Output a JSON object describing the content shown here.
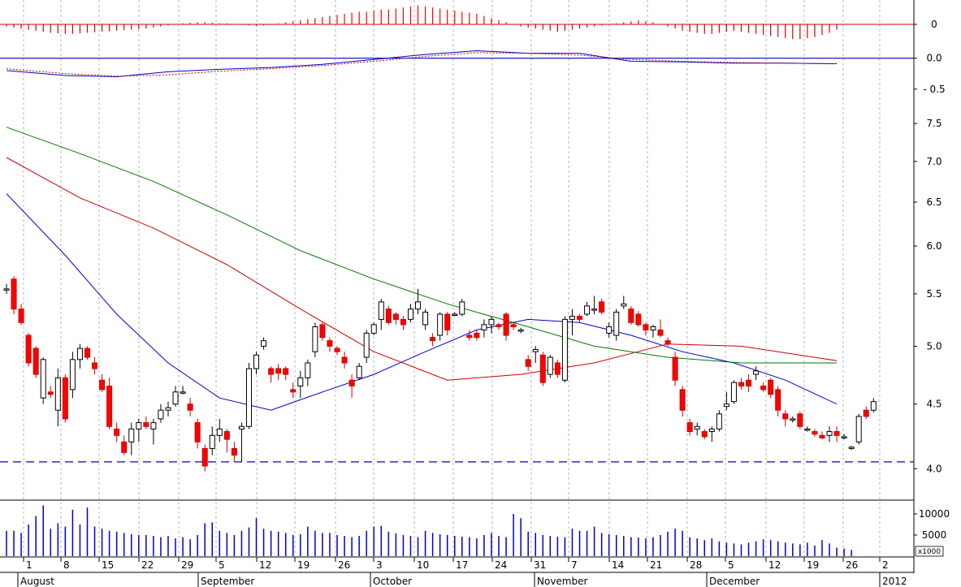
{
  "chart_data": [
    {
      "type": "bar",
      "panel": "oscillator-histogram",
      "y_tick_labels": [
        "0"
      ],
      "positive_color": "#ff0000",
      "negative_color": "#cc0000",
      "values": [
        -0.02,
        -0.03,
        -0.04,
        -0.05,
        -0.06,
        -0.07,
        -0.08,
        -0.085,
        -0.09,
        -0.09,
        -0.085,
        -0.08,
        -0.075,
        -0.07,
        -0.065,
        -0.06,
        -0.055,
        -0.05,
        -0.045,
        -0.04,
        -0.03,
        -0.02,
        -0.01,
        0.005,
        0.01,
        0.015,
        0.02,
        0.02,
        0.015,
        0.01,
        0.01,
        0.005,
        -0.005,
        -0.01,
        -0.015,
        -0.01,
        0.0,
        0.01,
        0.02,
        0.03,
        0.04,
        0.05,
        0.06,
        0.07,
        0.08,
        0.09,
        0.1,
        0.11,
        0.12,
        0.12,
        0.13,
        0.14,
        0.14,
        0.15,
        0.16,
        0.17,
        0.18,
        0.17,
        0.16,
        0.15,
        0.14,
        0.13,
        0.12,
        0.11,
        0.1,
        0.08,
        0.06,
        0.04,
        0.02,
        0.0,
        -0.02,
        -0.03,
        -0.04,
        -0.05,
        -0.06,
        -0.07,
        -0.06,
        -0.05,
        -0.04,
        -0.03,
        -0.02,
        -0.01,
        0.0,
        0.01,
        0.02,
        0.03,
        0.04,
        0.03,
        0.02,
        0.0,
        -0.02,
        -0.04,
        -0.06,
        -0.07,
        -0.08,
        -0.09,
        -0.09,
        -0.08,
        -0.07,
        -0.06,
        -0.07,
        -0.08,
        -0.09,
        -0.1,
        -0.11,
        -0.12,
        -0.13,
        -0.14,
        -0.14,
        -0.13,
        -0.12,
        -0.1,
        -0.08,
        -0.05
      ]
    },
    {
      "type": "line",
      "panel": "oscillator-lines",
      "y_ticks": [
        0.0,
        -0.5
      ],
      "y_tick_labels": [
        "0.0",
        "- 0.5"
      ],
      "ylim": [
        -0.7,
        0.35
      ],
      "zero_line_color": "#0000c8",
      "series": [
        {
          "color": "#0000c8",
          "style": "solid",
          "x": [
            0,
            8,
            15,
            22,
            29,
            36,
            43,
            50,
            57,
            64,
            71,
            78,
            85,
            92,
            99,
            106,
            113
          ],
          "values": [
            -0.2,
            -0.28,
            -0.3,
            -0.22,
            -0.18,
            -0.15,
            -0.1,
            -0.02,
            0.06,
            0.12,
            0.08,
            0.08,
            -0.05,
            -0.06,
            -0.08,
            -0.08,
            -0.09
          ]
        },
        {
          "color": "#cc0000",
          "style": "dotted",
          "x": [
            0,
            8,
            15,
            22,
            29,
            36,
            43,
            50,
            57,
            64,
            71,
            78,
            85,
            92,
            99,
            106,
            113
          ],
          "values": [
            -0.17,
            -0.25,
            -0.29,
            -0.27,
            -0.21,
            -0.17,
            -0.12,
            -0.05,
            0.03,
            0.09,
            0.08,
            0.05,
            -0.02,
            -0.05,
            -0.07,
            -0.08,
            -0.09
          ]
        }
      ]
    },
    {
      "type": "candlestick",
      "panel": "price",
      "y_ticks": [
        4.0,
        4.5,
        5.0,
        5.5,
        6.0,
        6.5,
        7.0,
        7.5
      ],
      "y_tick_labels": [
        "4.0",
        "4.5",
        "5.0",
        "5.5",
        "6.0",
        "6.5",
        "7.0",
        "7.5"
      ],
      "ylim": [
        3.8,
        7.75
      ],
      "log_scale": true,
      "support_level": 4.05,
      "support_color": "#0000c8",
      "up_color": "#ffffff",
      "down_color": "#ff0000",
      "ohlc": [
        [
          5.55,
          5.6,
          5.5,
          5.55
        ],
        [
          5.65,
          5.68,
          5.3,
          5.35
        ],
        [
          5.35,
          5.4,
          5.2,
          5.22
        ],
        [
          5.1,
          5.12,
          4.82,
          4.85
        ],
        [
          4.98,
          5.0,
          4.72,
          4.75
        ],
        [
          4.55,
          4.9,
          4.5,
          4.88
        ],
        [
          4.6,
          4.65,
          4.55,
          4.58
        ],
        [
          4.45,
          4.8,
          4.32,
          4.72
        ],
        [
          4.72,
          4.75,
          4.35,
          4.38
        ],
        [
          4.62,
          4.95,
          4.55,
          4.88
        ],
        [
          4.88,
          5.02,
          4.8,
          4.98
        ],
        [
          4.98,
          5.0,
          4.88,
          4.9
        ],
        [
          4.85,
          4.9,
          4.75,
          4.8
        ],
        [
          4.7,
          4.75,
          4.6,
          4.62
        ],
        [
          4.65,
          4.72,
          4.3,
          4.32
        ],
        [
          4.3,
          4.35,
          4.2,
          4.25
        ],
        [
          4.2,
          4.25,
          4.1,
          4.12
        ],
        [
          4.2,
          4.35,
          4.1,
          4.3
        ],
        [
          4.3,
          4.38,
          4.2,
          4.35
        ],
        [
          4.35,
          4.4,
          4.3,
          4.32
        ],
        [
          4.3,
          4.38,
          4.18,
          4.35
        ],
        [
          4.38,
          4.5,
          4.35,
          4.45
        ],
        [
          4.45,
          4.52,
          4.4,
          4.47
        ],
        [
          4.5,
          4.65,
          4.48,
          4.6
        ],
        [
          4.6,
          4.65,
          4.58,
          4.6
        ],
        [
          4.5,
          4.55,
          4.4,
          4.45
        ],
        [
          4.35,
          4.38,
          4.15,
          4.2
        ],
        [
          4.15,
          4.18,
          3.98,
          4.02
        ],
        [
          4.15,
          4.32,
          4.1,
          4.25
        ],
        [
          4.25,
          4.38,
          4.2,
          4.3
        ],
        [
          4.28,
          4.3,
          4.12,
          4.22
        ],
        [
          4.15,
          4.2,
          4.05,
          4.1
        ],
        [
          4.3,
          4.35,
          4.05,
          4.32
        ],
        [
          4.32,
          4.85,
          4.3,
          4.8
        ],
        [
          4.8,
          4.95,
          4.75,
          4.92
        ],
        [
          5.0,
          5.08,
          4.97,
          5.05
        ],
        [
          4.8,
          4.82,
          4.68,
          4.75
        ],
        [
          4.8,
          4.84,
          4.7,
          4.76
        ],
        [
          4.8,
          4.82,
          4.7,
          4.75
        ],
        [
          4.62,
          4.68,
          4.55,
          4.6
        ],
        [
          4.65,
          4.78,
          4.55,
          4.72
        ],
        [
          4.72,
          4.88,
          4.65,
          4.85
        ],
        [
          4.95,
          5.22,
          4.9,
          5.18
        ],
        [
          5.2,
          5.22,
          5.05,
          5.08
        ],
        [
          5.05,
          5.08,
          4.95,
          5.0
        ],
        [
          4.98,
          5.0,
          4.92,
          4.95
        ],
        [
          4.9,
          4.95,
          4.8,
          4.85
        ],
        [
          4.7,
          4.75,
          4.55,
          4.65
        ],
        [
          4.72,
          4.85,
          4.7,
          4.82
        ],
        [
          4.9,
          5.15,
          4.85,
          5.12
        ],
        [
          5.12,
          5.22,
          5.1,
          5.2
        ],
        [
          5.25,
          5.45,
          5.15,
          5.42
        ],
        [
          5.35,
          5.38,
          5.2,
          5.22
        ],
        [
          5.3,
          5.32,
          5.2,
          5.25
        ],
        [
          5.25,
          5.28,
          5.15,
          5.2
        ],
        [
          5.25,
          5.4,
          5.22,
          5.35
        ],
        [
          5.35,
          5.55,
          5.3,
          5.42
        ],
        [
          5.2,
          5.35,
          5.15,
          5.32
        ],
        [
          5.08,
          5.12,
          5.0,
          5.05
        ],
        [
          5.1,
          5.32,
          5.05,
          5.3
        ],
        [
          5.3,
          5.32,
          5.1,
          5.15
        ],
        [
          5.3,
          5.32,
          5.28,
          5.3
        ],
        [
          5.3,
          5.45,
          5.28,
          5.42
        ],
        [
          5.1,
          5.15,
          5.05,
          5.08
        ],
        [
          5.12,
          5.15,
          5.05,
          5.08
        ],
        [
          5.15,
          5.25,
          5.08,
          5.2
        ],
        [
          5.2,
          5.28,
          5.12,
          5.25
        ],
        [
          5.2,
          5.22,
          5.15,
          5.18
        ],
        [
          5.3,
          5.32,
          5.05,
          5.1
        ],
        [
          5.2,
          5.22,
          5.15,
          5.18
        ],
        [
          5.15,
          5.17,
          5.12,
          5.15
        ],
        [
          4.88,
          4.92,
          4.78,
          4.82
        ],
        [
          4.95,
          5.0,
          4.85,
          4.97
        ],
        [
          4.92,
          4.95,
          4.65,
          4.68
        ],
        [
          4.75,
          4.92,
          4.72,
          4.9
        ],
        [
          4.85,
          4.88,
          4.72,
          4.75
        ],
        [
          4.7,
          5.28,
          4.68,
          5.25
        ],
        [
          5.25,
          5.35,
          5.1,
          5.28
        ],
        [
          5.28,
          5.3,
          5.22,
          5.25
        ],
        [
          5.3,
          5.42,
          5.28,
          5.38
        ],
        [
          5.35,
          5.48,
          5.3,
          5.35
        ],
        [
          5.42,
          5.45,
          5.3,
          5.32
        ],
        [
          5.12,
          5.22,
          5.08,
          5.18
        ],
        [
          5.1,
          5.35,
          5.05,
          5.32
        ],
        [
          5.38,
          5.48,
          5.35,
          5.4
        ],
        [
          5.35,
          5.38,
          5.2,
          5.22
        ],
        [
          5.3,
          5.33,
          5.18,
          5.2
        ],
        [
          5.2,
          5.22,
          5.1,
          5.15
        ],
        [
          5.15,
          5.2,
          5.08,
          5.18
        ],
        [
          5.15,
          5.25,
          5.08,
          5.1
        ],
        [
          5.05,
          5.08,
          5.0,
          5.02
        ],
        [
          4.9,
          4.95,
          4.65,
          4.7
        ],
        [
          4.62,
          4.65,
          4.4,
          4.45
        ],
        [
          4.35,
          4.38,
          4.25,
          4.28
        ],
        [
          4.3,
          4.35,
          4.25,
          4.32
        ],
        [
          4.28,
          4.3,
          4.22,
          4.24
        ],
        [
          4.28,
          4.32,
          4.2,
          4.3
        ],
        [
          4.3,
          4.45,
          4.28,
          4.42
        ],
        [
          4.48,
          4.6,
          4.45,
          4.5
        ],
        [
          4.52,
          4.7,
          4.5,
          4.68
        ],
        [
          4.68,
          4.72,
          4.62,
          4.65
        ],
        [
          4.7,
          4.75,
          4.6,
          4.65
        ],
        [
          4.75,
          4.82,
          4.7,
          4.78
        ],
        [
          4.65,
          4.68,
          4.6,
          4.62
        ],
        [
          4.7,
          4.72,
          4.55,
          4.58
        ],
        [
          4.62,
          4.65,
          4.4,
          4.45
        ],
        [
          4.42,
          4.45,
          4.32,
          4.38
        ],
        [
          4.38,
          4.4,
          4.35,
          4.38
        ],
        [
          4.42,
          4.44,
          4.3,
          4.32
        ],
        [
          4.3,
          4.32,
          4.28,
          4.3
        ],
        [
          4.28,
          4.3,
          4.24,
          4.26
        ],
        [
          4.25,
          4.28,
          4.22,
          4.23
        ],
        [
          4.25,
          4.32,
          4.2,
          4.28
        ],
        [
          4.28,
          4.32,
          4.2,
          4.25
        ],
        [
          4.24,
          4.26,
          4.22,
          4.24
        ],
        [
          4.15,
          4.17,
          4.14,
          4.16
        ],
        [
          4.2,
          4.42,
          4.18,
          4.4
        ],
        [
          4.45,
          4.48,
          4.38,
          4.4
        ],
        [
          4.45,
          4.55,
          4.43,
          4.52
        ]
      ],
      "moving_averages": [
        {
          "color": "#0000c8",
          "x": [
            0,
            8,
            15,
            22,
            29,
            36,
            43,
            50,
            57,
            64,
            71,
            78,
            85,
            92,
            99,
            106,
            113
          ],
          "values": [
            6.6,
            5.9,
            5.3,
            4.85,
            4.55,
            4.45,
            4.6,
            4.75,
            4.95,
            5.15,
            5.25,
            5.22,
            5.1,
            4.95,
            4.85,
            4.7,
            4.5
          ]
        },
        {
          "color": "#cc0000",
          "x": [
            0,
            10,
            20,
            30,
            40,
            50,
            60,
            70,
            80,
            90,
            100,
            113
          ],
          "values": [
            7.05,
            6.55,
            6.2,
            5.8,
            5.35,
            4.95,
            4.7,
            4.75,
            4.85,
            5.02,
            5.0,
            4.87
          ]
        },
        {
          "color": "#007800",
          "x": [
            0,
            10,
            20,
            30,
            40,
            50,
            60,
            70,
            80,
            90,
            100,
            113
          ],
          "values": [
            7.45,
            7.1,
            6.75,
            6.35,
            5.95,
            5.65,
            5.4,
            5.2,
            5.0,
            4.9,
            4.85,
            4.85
          ]
        }
      ]
    },
    {
      "type": "bar",
      "panel": "volume",
      "y_ticks": [
        5000,
        10000
      ],
      "y_tick_labels": [
        "5000",
        "10000"
      ],
      "unit_label": "x1000",
      "color": "#0000c8",
      "values": [
        6000,
        6000,
        5500,
        7500,
        9500,
        12000,
        6500,
        7800,
        7000,
        11000,
        7500,
        11500,
        7000,
        6500,
        6000,
        5800,
        5500,
        5200,
        5000,
        5000,
        4800,
        4500,
        4800,
        4200,
        4500,
        4000,
        5000,
        7800,
        8000,
        6000,
        5500,
        5000,
        6000,
        6800,
        9000,
        6500,
        6000,
        5800,
        5500,
        5000,
        5200,
        7000,
        6000,
        5500,
        5500,
        5000,
        4800,
        4500,
        4800,
        6000,
        7000,
        7200,
        5800,
        5400,
        5000,
        4800,
        4500,
        6000,
        5500,
        5200,
        5000,
        4800,
        4600,
        4500,
        4200,
        5000,
        5500,
        4800,
        4500,
        10000,
        9000,
        5800,
        5500,
        5000,
        4800,
        4600,
        4500,
        6500,
        6000,
        6000,
        7000,
        5500,
        5200,
        5000,
        4800,
        4500,
        4400,
        4200,
        4500,
        5000,
        5800,
        6500,
        6000,
        4500,
        4200,
        3800,
        4200,
        3500,
        3200,
        3000,
        2800,
        3200,
        3500,
        4000,
        3800,
        3500,
        3200,
        3000,
        2800,
        3200,
        2500,
        3800,
        3000,
        2000,
        1800,
        1500
      ]
    }
  ],
  "x_axis": {
    "day_labels": [
      "1",
      "8",
      "15",
      "22",
      "29",
      "5",
      "12",
      "19",
      "26",
      "3",
      "10",
      "17",
      "24",
      "31",
      "7",
      "14",
      "21",
      "28",
      "5",
      "12",
      "19",
      "26",
      "2"
    ],
    "month_labels": [
      "August",
      "September",
      "October",
      "November",
      "December",
      "2012"
    ]
  }
}
